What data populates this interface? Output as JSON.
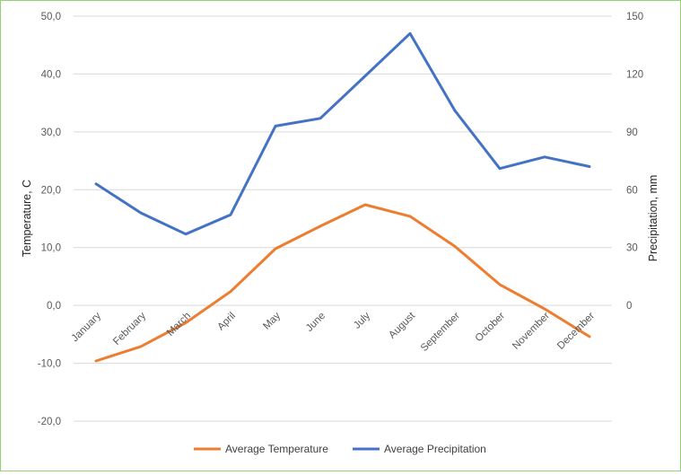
{
  "chart_data": {
    "type": "line",
    "categories": [
      "January",
      "February",
      "March",
      "April",
      "May",
      "June",
      "July",
      "August",
      "September",
      "October",
      "November",
      "December"
    ],
    "series": [
      {
        "name": "Average Temperature",
        "axis": "left",
        "color": "#ed7d31",
        "values": [
          -9.6,
          -7.1,
          -3.0,
          2.4,
          9.8,
          13.7,
          17.4,
          15.4,
          10.2,
          3.6,
          -0.6,
          -5.4
        ]
      },
      {
        "name": "Average Precipitation",
        "axis": "right",
        "color": "#4472c4",
        "values": [
          63,
          48,
          37,
          47,
          93,
          97,
          119,
          141,
          101,
          71,
          77,
          72
        ]
      }
    ],
    "left_axis": {
      "title": "Temperature, C",
      "min": -20,
      "max": 50,
      "step": 10,
      "tick_labels": [
        "-20,0",
        "-10,0",
        "0,0",
        "10,0",
        "20,0",
        "30,0",
        "40,0",
        "50,0"
      ]
    },
    "right_axis": {
      "title": "Precipitation, mm",
      "min": -60,
      "max": 150,
      "step": 30,
      "tick_labels": [
        "0",
        "30",
        "60",
        "90",
        "120",
        "150"
      ]
    },
    "grid": true,
    "legend": "bottom"
  }
}
